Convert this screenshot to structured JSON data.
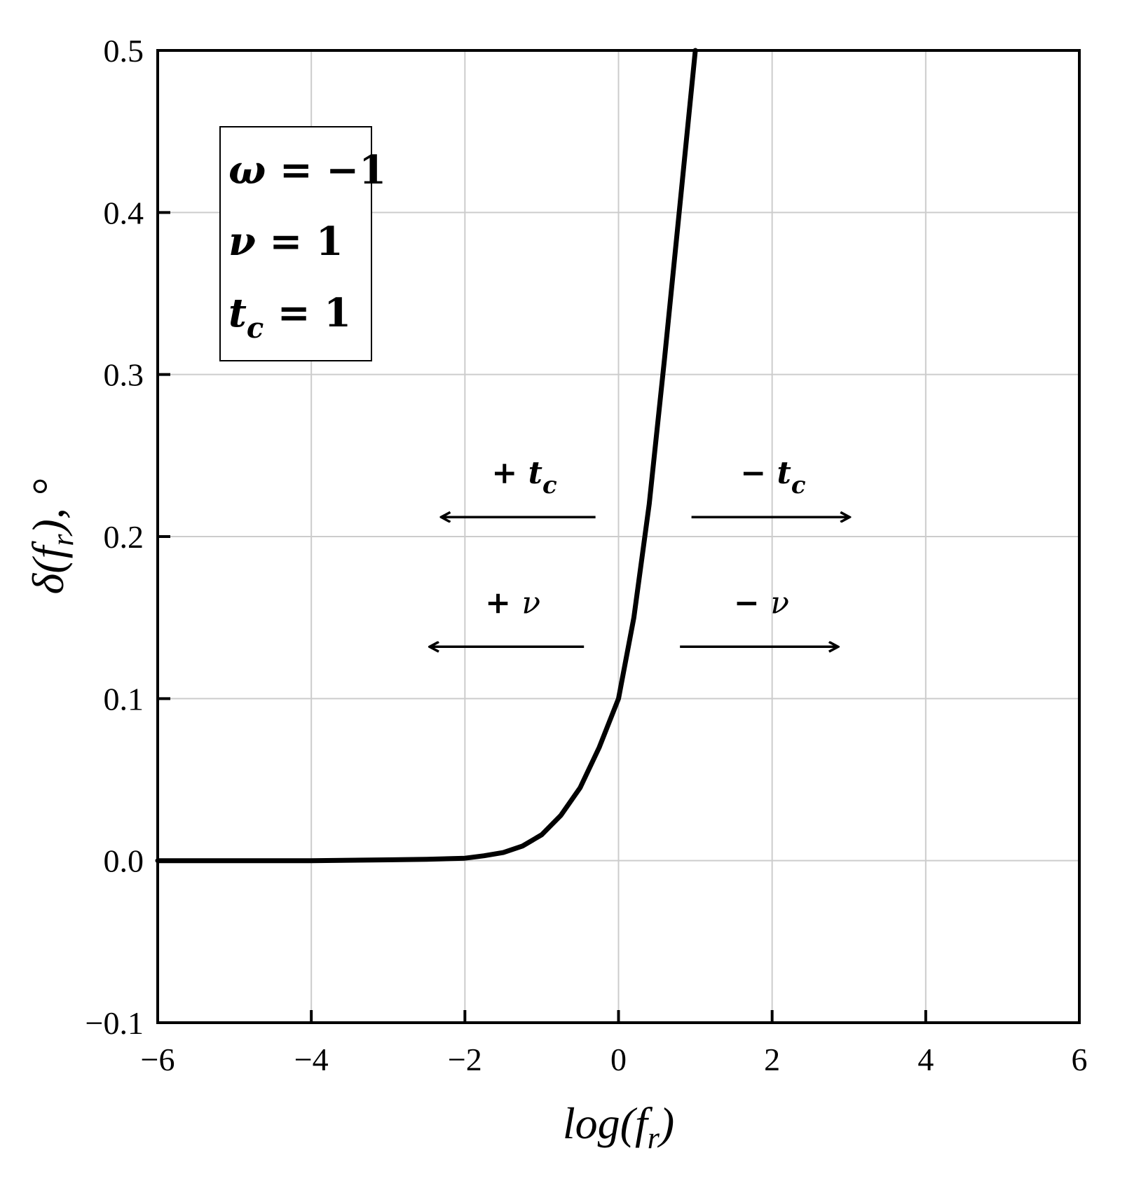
{
  "chart_data": {
    "type": "line",
    "xlabel": "log(f_r)",
    "xlabel_parts": {
      "main": "log(f",
      "sub": "r",
      "close": ")"
    },
    "ylabel_parts": {
      "main": "δ(f",
      "sub": "r",
      "close": "), °"
    },
    "xlim": [
      -6,
      6
    ],
    "ylim": [
      -0.1,
      0.5
    ],
    "x_ticks": [
      -6,
      -4,
      -2,
      0,
      2,
      4,
      6
    ],
    "x_tick_labels": [
      "−6",
      "−4",
      "−2",
      "0",
      "2",
      "4",
      "6"
    ],
    "y_ticks": [
      -0.1,
      0.0,
      0.1,
      0.2,
      0.3,
      0.4,
      0.5
    ],
    "y_tick_labels": [
      "−0.1",
      "0.0",
      "0.1",
      "0.2",
      "0.3",
      "0.4",
      "0.5"
    ],
    "grid": true,
    "series": [
      {
        "x": [
          -6,
          -5,
          -4,
          -3,
          -2.5,
          -2,
          -1.75,
          -1.5,
          -1.25,
          -1.0,
          -0.75,
          -0.5,
          -0.25,
          0.0,
          0.2,
          0.4,
          0.6,
          0.8,
          1.0
        ],
        "y": [
          0.0,
          0.0,
          0.0,
          0.0005,
          0.0008,
          0.0015,
          0.003,
          0.005,
          0.009,
          0.016,
          0.028,
          0.045,
          0.07,
          0.1,
          0.15,
          0.22,
          0.31,
          0.405,
          0.5
        ],
        "color": "#000000"
      }
    ],
    "legend": {
      "placement": "top-left",
      "entries": [
        {
          "sym": "ω",
          "op": " = ",
          "val": "−1"
        },
        {
          "sym": "ν",
          "op": " = ",
          "val": "1"
        },
        {
          "sym": "t",
          "sub": "c",
          "op": " = ",
          "val": "1"
        }
      ]
    },
    "annotations": [
      {
        "sign": "+ ",
        "sym": "t",
        "sub": "c",
        "direction": "left",
        "bold": true,
        "x_from": -0.3,
        "x_to": -2.3,
        "y": 0.212
      },
      {
        "sign": "− ",
        "sym": "t",
        "sub": "c",
        "direction": "right",
        "bold": true,
        "x_from": 0.95,
        "x_to": 3.0,
        "y": 0.212
      },
      {
        "sign": "+ ",
        "sym": "ν",
        "direction": "left",
        "bold": false,
        "x_from": -0.45,
        "x_to": -2.45,
        "y": 0.132
      },
      {
        "sign": "− ",
        "sym": "ν",
        "direction": "right",
        "bold": false,
        "x_from": 0.8,
        "x_to": 2.85,
        "y": 0.132
      }
    ]
  }
}
